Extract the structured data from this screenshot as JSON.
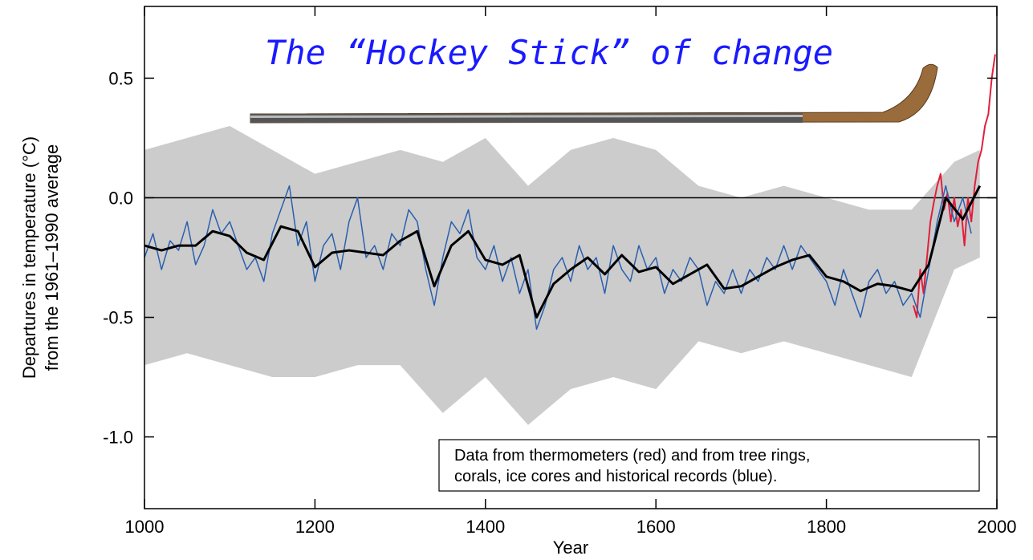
{
  "chart_data": {
    "type": "line",
    "title": "The “Hockey Stick” of change",
    "xlabel": "Year",
    "ylabel": [
      "Departures in temperature (°C)",
      "from the 1961–1990 average"
    ],
    "annotation": [
      "Data from thermometers (red) and from tree rings,",
      "corals, ice cores and historical records (blue)."
    ],
    "xlim": [
      1000,
      2000
    ],
    "ylim": [
      -1.3,
      0.8
    ],
    "xticks": [
      1000,
      1200,
      1400,
      1600,
      1800,
      2000
    ],
    "yticks": [
      {
        "value": -1.0,
        "label": "-1.0"
      },
      {
        "value": -0.5,
        "label": "-0.5"
      },
      {
        "value": 0.0,
        "label": "0.0"
      },
      {
        "value": 0.5,
        "label": "0.5"
      }
    ],
    "hline": 0,
    "band": {
      "color": "#cccccc",
      "x": [
        1000,
        1050,
        1100,
        1150,
        1200,
        1250,
        1300,
        1350,
        1400,
        1450,
        1500,
        1550,
        1600,
        1650,
        1700,
        1750,
        1800,
        1850,
        1900,
        1950,
        1980
      ],
      "upper": [
        0.2,
        0.25,
        0.3,
        0.2,
        0.1,
        0.15,
        0.2,
        0.15,
        0.25,
        0.05,
        0.2,
        0.25,
        0.2,
        0.05,
        0.0,
        0.05,
        0.0,
        -0.05,
        -0.05,
        0.15,
        0.2
      ],
      "lower": [
        -0.7,
        -0.65,
        -0.7,
        -0.75,
        -0.75,
        -0.7,
        -0.7,
        -0.9,
        -0.75,
        -0.95,
        -0.8,
        -0.75,
        -0.8,
        -0.6,
        -0.65,
        -0.6,
        -0.65,
        -0.7,
        -0.75,
        -0.3,
        -0.25
      ]
    },
    "series": [
      {
        "color": "#e0203c",
        "width": 2,
        "x": [
          1902,
          1906,
          1910,
          1914,
          1918,
          1922,
          1926,
          1930,
          1934,
          1938,
          1942,
          1946,
          1950,
          1954,
          1958,
          1962,
          1966,
          1970,
          1974,
          1978,
          1982,
          1986,
          1990,
          1994,
          1998
        ],
        "values": [
          -0.45,
          -0.5,
          -0.3,
          -0.4,
          -0.25,
          -0.1,
          -0.02,
          0.05,
          0.1,
          -0.05,
          0.02,
          -0.1,
          0.0,
          -0.12,
          -0.05,
          -0.2,
          0.0,
          -0.1,
          0.05,
          0.15,
          0.2,
          0.3,
          0.35,
          0.5,
          0.6
        ]
      },
      {
        "color": "#2a5fae",
        "width": 1.5,
        "x": [
          1000,
          1010,
          1020,
          1030,
          1040,
          1050,
          1060,
          1070,
          1080,
          1090,
          1100,
          1110,
          1120,
          1130,
          1140,
          1150,
          1160,
          1170,
          1180,
          1190,
          1200,
          1210,
          1220,
          1230,
          1240,
          1250,
          1260,
          1270,
          1280,
          1290,
          1300,
          1310,
          1320,
          1330,
          1340,
          1350,
          1360,
          1370,
          1380,
          1390,
          1400,
          1410,
          1420,
          1430,
          1440,
          1450,
          1460,
          1470,
          1480,
          1490,
          1500,
          1510,
          1520,
          1530,
          1540,
          1550,
          1560,
          1570,
          1580,
          1590,
          1600,
          1610,
          1620,
          1630,
          1640,
          1650,
          1660,
          1670,
          1680,
          1690,
          1700,
          1710,
          1720,
          1730,
          1740,
          1750,
          1760,
          1770,
          1780,
          1790,
          1800,
          1810,
          1820,
          1830,
          1840,
          1850,
          1860,
          1870,
          1880,
          1890,
          1900,
          1910,
          1920,
          1930,
          1940,
          1950,
          1960,
          1970
        ],
        "values": [
          -0.25,
          -0.15,
          -0.3,
          -0.18,
          -0.22,
          -0.1,
          -0.28,
          -0.2,
          -0.05,
          -0.15,
          -0.1,
          -0.2,
          -0.3,
          -0.25,
          -0.35,
          -0.15,
          -0.05,
          0.05,
          -0.2,
          -0.1,
          -0.35,
          -0.2,
          -0.15,
          -0.3,
          -0.1,
          0.0,
          -0.25,
          -0.2,
          -0.3,
          -0.15,
          -0.2,
          -0.05,
          -0.1,
          -0.3,
          -0.45,
          -0.25,
          -0.1,
          -0.15,
          -0.05,
          -0.25,
          -0.3,
          -0.2,
          -0.35,
          -0.25,
          -0.4,
          -0.3,
          -0.55,
          -0.45,
          -0.3,
          -0.25,
          -0.35,
          -0.2,
          -0.3,
          -0.25,
          -0.4,
          -0.2,
          -0.3,
          -0.35,
          -0.2,
          -0.3,
          -0.25,
          -0.4,
          -0.3,
          -0.35,
          -0.25,
          -0.3,
          -0.45,
          -0.35,
          -0.4,
          -0.3,
          -0.4,
          -0.3,
          -0.35,
          -0.25,
          -0.3,
          -0.2,
          -0.3,
          -0.2,
          -0.25,
          -0.3,
          -0.35,
          -0.45,
          -0.3,
          -0.4,
          -0.5,
          -0.35,
          -0.3,
          -0.4,
          -0.35,
          -0.45,
          -0.4,
          -0.5,
          -0.3,
          -0.1,
          0.05,
          -0.1,
          0.0,
          -0.15
        ]
      },
      {
        "color": "#000000",
        "width": 3,
        "x": [
          1000,
          1020,
          1040,
          1060,
          1080,
          1100,
          1120,
          1140,
          1160,
          1180,
          1200,
          1220,
          1240,
          1260,
          1280,
          1300,
          1320,
          1340,
          1360,
          1380,
          1400,
          1420,
          1440,
          1460,
          1480,
          1500,
          1520,
          1540,
          1560,
          1580,
          1600,
          1620,
          1640,
          1660,
          1680,
          1700,
          1720,
          1740,
          1760,
          1780,
          1800,
          1820,
          1840,
          1860,
          1880,
          1900,
          1920,
          1940,
          1960,
          1980
        ],
        "values": [
          -0.2,
          -0.22,
          -0.2,
          -0.2,
          -0.14,
          -0.16,
          -0.23,
          -0.26,
          -0.12,
          -0.14,
          -0.29,
          -0.23,
          -0.22,
          -0.23,
          -0.24,
          -0.18,
          -0.14,
          -0.37,
          -0.2,
          -0.14,
          -0.26,
          -0.28,
          -0.24,
          -0.5,
          -0.36,
          -0.3,
          -0.25,
          -0.32,
          -0.24,
          -0.31,
          -0.29,
          -0.36,
          -0.32,
          -0.28,
          -0.38,
          -0.37,
          -0.33,
          -0.29,
          -0.26,
          -0.24,
          -0.33,
          -0.35,
          -0.39,
          -0.36,
          -0.37,
          -0.39,
          -0.28,
          0.0,
          -0.09,
          0.05
        ]
      }
    ]
  }
}
